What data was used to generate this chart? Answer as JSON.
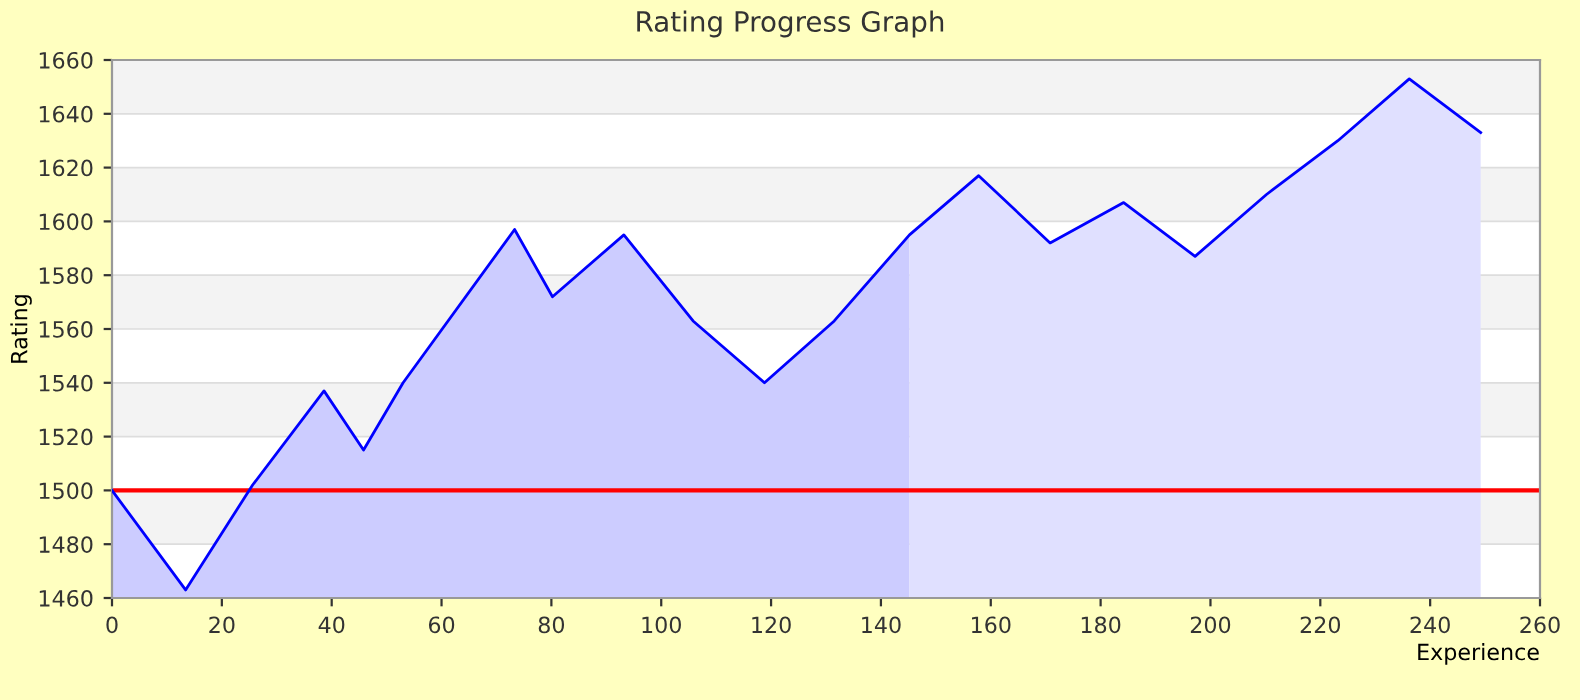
{
  "chart_data": {
    "type": "area",
    "title": "Rating Progress Graph",
    "xlabel": "Experience",
    "ylabel": "Rating",
    "series": [
      {
        "color": "#ccccff",
        "x": [
          0,
          13.4,
          25.6,
          38.6,
          45.8,
          53,
          73.3,
          80.2,
          93.2,
          105.8,
          118.8,
          131.5,
          145.2
        ],
        "values": [
          1500,
          1463,
          1502,
          1537,
          1515,
          1540,
          1597,
          1572,
          1595,
          1563,
          1540,
          1563,
          1595
        ]
      },
      {
        "color": "#e0e0ff",
        "x": [
          145.2,
          157.8,
          170.8,
          184.2,
          197.2,
          210.2,
          223.2,
          236.2,
          249.2
        ],
        "values": [
          1595,
          1617,
          1592,
          1607,
          1587,
          1610,
          1630,
          1653,
          1633
        ]
      },
      {
        "type": "line",
        "color": "#0000ff",
        "x": [
          0,
          13.4,
          25.6,
          38.6,
          45.8,
          53,
          73.3,
          80.2,
          93.2,
          105.8,
          118.8,
          131.5,
          145.2,
          157.8,
          170.8,
          184.2,
          197.2,
          210.2,
          223.2,
          236.2,
          249.2
        ],
        "values": [
          1500,
          1463,
          1502,
          1537,
          1515,
          1540,
          1597,
          1572,
          1595,
          1563,
          1540,
          1563,
          1595,
          1617,
          1592,
          1607,
          1587,
          1610,
          1630,
          1653,
          1633
        ]
      }
    ],
    "xlim": [
      0,
      260
    ],
    "xticks": [
      0,
      20,
      40,
      60,
      80,
      100,
      120,
      140,
      160,
      180,
      200,
      220,
      240,
      260
    ],
    "ylim": [
      1460,
      1660
    ],
    "yticks": [
      1460,
      1480,
      1500,
      1520,
      1540,
      1560,
      1580,
      1600,
      1620,
      1640,
      1660
    ],
    "ref_lines": [
      {
        "axis": "y",
        "value": 1500,
        "color": "#ff0000"
      }
    ],
    "grid": "y",
    "legend": false
  }
}
